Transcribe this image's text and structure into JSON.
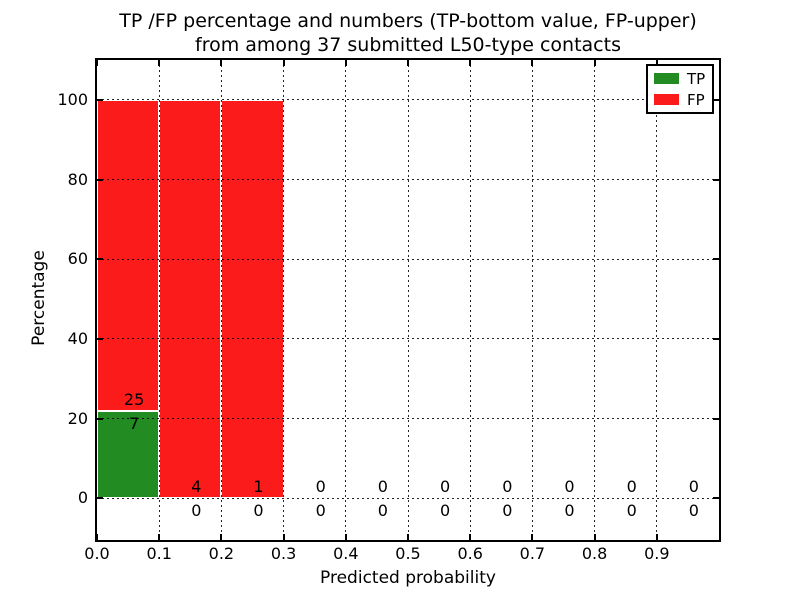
{
  "chart_data": {
    "type": "bar",
    "stacked": true,
    "title_line1": "TP /FP percentage and numbers (TP-bottom value, FP-upper)",
    "title_line2": "from among 37 submitted L50-type contacts",
    "xlabel": "Predicted probability",
    "ylabel": "Percentage",
    "xlim": [
      0.0,
      1.0
    ],
    "ylim": [
      -10.5,
      110
    ],
    "xtick_labels": [
      "0.0",
      "0.1",
      "0.2",
      "0.3",
      "0.4",
      "0.5",
      "0.6",
      "0.7",
      "0.8",
      "0.9"
    ],
    "ytick_labels": [
      "0",
      "20",
      "40",
      "60",
      "80",
      "100"
    ],
    "grid": "dotted",
    "legend_position": "upper-right",
    "colors": {
      "tp": "#228b22",
      "fp": "#fb1b1b",
      "axis": "#000000",
      "background": "#ffffff",
      "bar_edge": "#ffffff"
    },
    "legend": {
      "entries": [
        {
          "label": "TP",
          "key": "tp"
        },
        {
          "label": "FP",
          "key": "fp"
        }
      ]
    },
    "bins": [
      {
        "range": [
          0.0,
          0.1
        ],
        "tp_count": 7,
        "fp_count": 25,
        "tp_pct": 21.875,
        "fp_pct": 78.125
      },
      {
        "range": [
          0.1,
          0.2
        ],
        "tp_count": 0,
        "fp_count": 4,
        "tp_pct": 0,
        "fp_pct": 100
      },
      {
        "range": [
          0.2,
          0.3
        ],
        "tp_count": 0,
        "fp_count": 1,
        "tp_pct": 0,
        "fp_pct": 100
      },
      {
        "range": [
          0.3,
          0.4
        ],
        "tp_count": 0,
        "fp_count": 0,
        "tp_pct": 0,
        "fp_pct": 0
      },
      {
        "range": [
          0.4,
          0.5
        ],
        "tp_count": 0,
        "fp_count": 0,
        "tp_pct": 0,
        "fp_pct": 0
      },
      {
        "range": [
          0.5,
          0.6
        ],
        "tp_count": 0,
        "fp_count": 0,
        "tp_pct": 0,
        "fp_pct": 0
      },
      {
        "range": [
          0.6,
          0.7
        ],
        "tp_count": 0,
        "fp_count": 0,
        "tp_pct": 0,
        "fp_pct": 0
      },
      {
        "range": [
          0.7,
          0.8
        ],
        "tp_count": 0,
        "fp_count": 0,
        "tp_pct": 0,
        "fp_pct": 0
      },
      {
        "range": [
          0.8,
          0.9
        ],
        "tp_count": 0,
        "fp_count": 0,
        "tp_pct": 0,
        "fp_pct": 0
      },
      {
        "range": [
          0.9,
          1.0
        ],
        "tp_count": 0,
        "fp_count": 0,
        "tp_pct": 0,
        "fp_pct": 0
      }
    ]
  }
}
